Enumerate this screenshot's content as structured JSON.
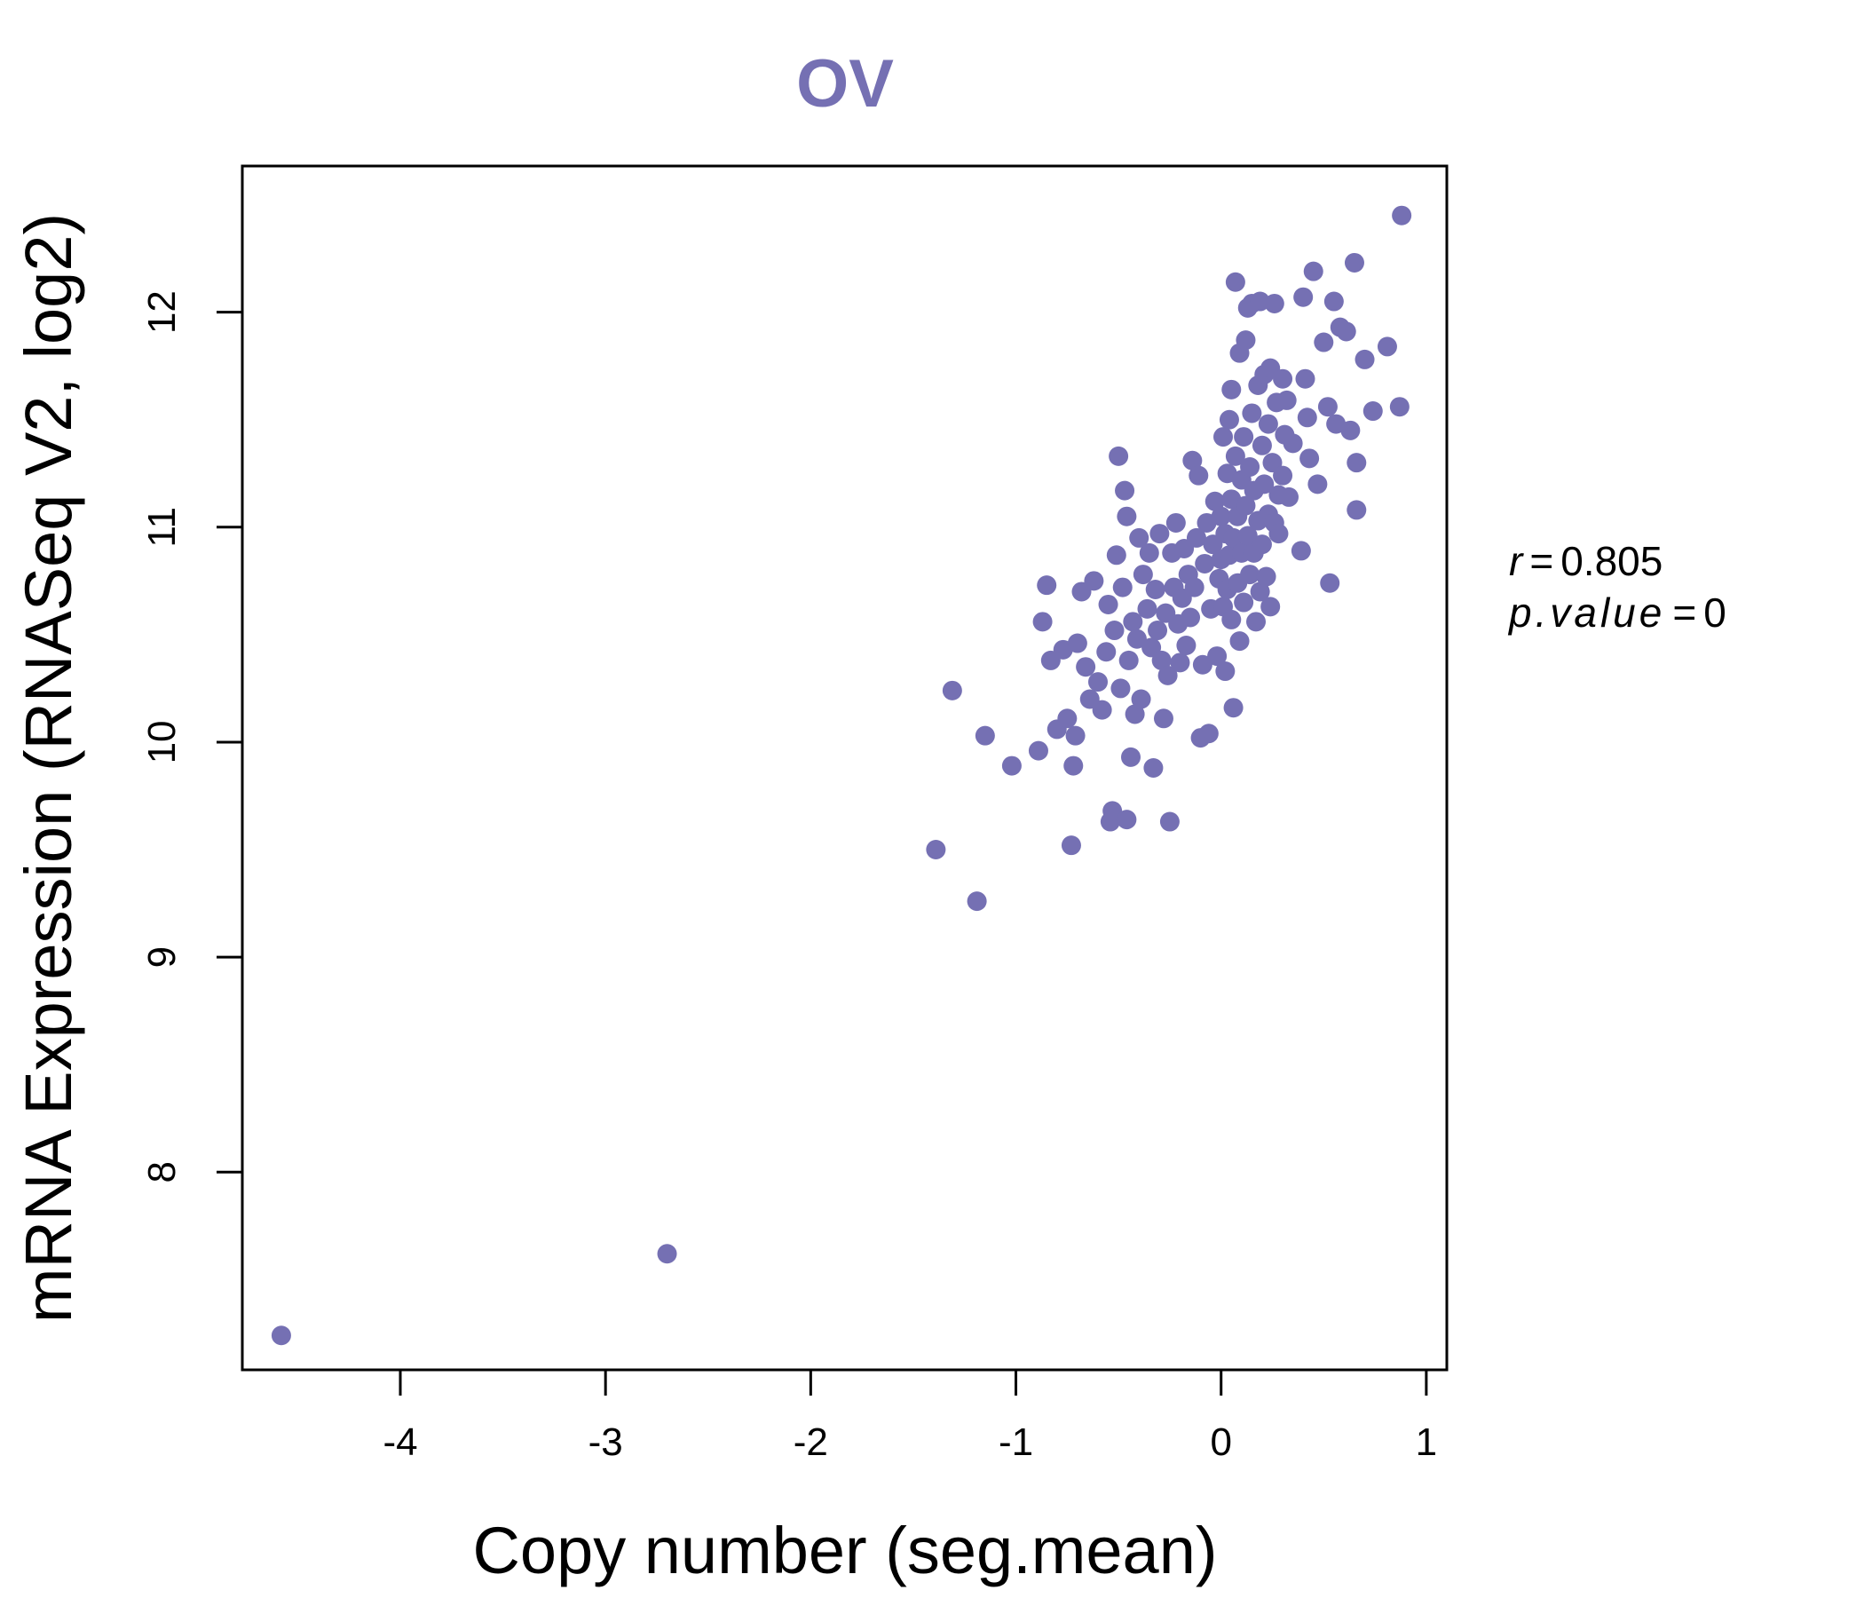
{
  "chart_data": {
    "type": "scatter",
    "title": "OV",
    "xlabel": "Copy number (seg.mean)",
    "ylabel": "mRNA Expression (RNASeq V2, log2)",
    "xlim": [
      -4.77,
      1.1
    ],
    "ylim": [
      7.08,
      12.68
    ],
    "xticks": [
      -4,
      -3,
      -2,
      -1,
      0,
      1
    ],
    "xtick_labels": [
      "-4",
      "-3",
      "-2",
      "-1",
      "0",
      "1"
    ],
    "yticks": [
      8,
      9,
      10,
      11,
      12
    ],
    "ytick_labels": [
      "8",
      "9",
      "10",
      "11",
      "12"
    ],
    "grid": false,
    "point_color": "#7570b3",
    "annotation": {
      "r_symbol": "r",
      "r_value": "0.805",
      "p_symbol": "p.value",
      "p_value": "0",
      "equals": "="
    },
    "points": [
      [
        -4.58,
        7.24
      ],
      [
        -2.7,
        7.62
      ],
      [
        -1.39,
        9.5
      ],
      [
        -1.19,
        9.26
      ],
      [
        -1.31,
        10.24
      ],
      [
        -1.15,
        10.03
      ],
      [
        -1.02,
        9.89
      ],
      [
        -0.89,
        9.96
      ],
      [
        -0.87,
        10.56
      ],
      [
        -0.85,
        10.73
      ],
      [
        -0.83,
        10.38
      ],
      [
        -0.8,
        10.06
      ],
      [
        -0.77,
        10.43
      ],
      [
        -0.75,
        10.11
      ],
      [
        -0.73,
        9.52
      ],
      [
        -0.72,
        9.89
      ],
      [
        -0.71,
        10.03
      ],
      [
        -0.7,
        10.46
      ],
      [
        -0.68,
        10.7
      ],
      [
        -0.66,
        10.35
      ],
      [
        -0.64,
        10.2
      ],
      [
        -0.62,
        10.75
      ],
      [
        -0.6,
        10.28
      ],
      [
        -0.58,
        10.15
      ],
      [
        -0.56,
        10.42
      ],
      [
        -0.55,
        10.64
      ],
      [
        -0.54,
        9.63
      ],
      [
        -0.53,
        9.68
      ],
      [
        -0.52,
        10.52
      ],
      [
        -0.51,
        10.87
      ],
      [
        -0.5,
        11.33
      ],
      [
        -0.49,
        10.25
      ],
      [
        -0.48,
        10.72
      ],
      [
        -0.47,
        11.17
      ],
      [
        -0.46,
        11.05
      ],
      [
        -0.46,
        9.64
      ],
      [
        -0.45,
        10.38
      ],
      [
        -0.44,
        9.93
      ],
      [
        -0.43,
        10.56
      ],
      [
        -0.42,
        10.13
      ],
      [
        -0.41,
        10.48
      ],
      [
        -0.4,
        10.95
      ],
      [
        -0.39,
        10.2
      ],
      [
        -0.38,
        10.78
      ],
      [
        -0.36,
        10.62
      ],
      [
        -0.35,
        10.88
      ],
      [
        -0.34,
        10.44
      ],
      [
        -0.33,
        9.88
      ],
      [
        -0.32,
        10.71
      ],
      [
        -0.31,
        10.52
      ],
      [
        -0.3,
        10.97
      ],
      [
        -0.29,
        10.38
      ],
      [
        -0.28,
        10.11
      ],
      [
        -0.27,
        10.6
      ],
      [
        -0.26,
        10.31
      ],
      [
        -0.25,
        9.63
      ],
      [
        -0.24,
        10.88
      ],
      [
        -0.23,
        10.72
      ],
      [
        -0.22,
        11.02
      ],
      [
        -0.21,
        10.55
      ],
      [
        -0.2,
        10.37
      ],
      [
        -0.19,
        10.67
      ],
      [
        -0.18,
        10.9
      ],
      [
        -0.17,
        10.45
      ],
      [
        -0.16,
        10.78
      ],
      [
        -0.15,
        10.58
      ],
      [
        -0.14,
        11.31
      ],
      [
        -0.13,
        10.72
      ],
      [
        -0.12,
        10.95
      ],
      [
        -0.11,
        11.24
      ],
      [
        -0.1,
        10.02
      ],
      [
        -0.09,
        10.36
      ],
      [
        -0.08,
        10.83
      ],
      [
        -0.07,
        11.02
      ],
      [
        -0.06,
        10.04
      ],
      [
        -0.05,
        10.62
      ],
      [
        -0.04,
        10.92
      ],
      [
        -0.03,
        11.12
      ],
      [
        -0.02,
        10.4
      ],
      [
        -0.01,
        10.76
      ],
      [
        0.0,
        10.85
      ],
      [
        0.0,
        11.05
      ],
      [
        0.01,
        10.63
      ],
      [
        0.01,
        11.42
      ],
      [
        0.02,
        10.97
      ],
      [
        0.02,
        10.33
      ],
      [
        0.03,
        11.25
      ],
      [
        0.03,
        10.71
      ],
      [
        0.04,
        11.5
      ],
      [
        0.04,
        10.87
      ],
      [
        0.05,
        11.64
      ],
      [
        0.05,
        10.57
      ],
      [
        0.05,
        11.13
      ],
      [
        0.06,
        10.16
      ],
      [
        0.06,
        10.95
      ],
      [
        0.07,
        12.14
      ],
      [
        0.07,
        11.33
      ],
      [
        0.08,
        10.74
      ],
      [
        0.08,
        11.05
      ],
      [
        0.09,
        11.81
      ],
      [
        0.09,
        10.47
      ],
      [
        0.1,
        11.22
      ],
      [
        0.1,
        10.88
      ],
      [
        0.11,
        11.42
      ],
      [
        0.11,
        10.65
      ],
      [
        0.12,
        11.1
      ],
      [
        0.12,
        11.87
      ],
      [
        0.13,
        10.96
      ],
      [
        0.13,
        12.02
      ],
      [
        0.14,
        11.28
      ],
      [
        0.14,
        10.78
      ],
      [
        0.15,
        12.04
      ],
      [
        0.15,
        11.53
      ],
      [
        0.16,
        10.88
      ],
      [
        0.16,
        11.17
      ],
      [
        0.17,
        10.56
      ],
      [
        0.18,
        11.66
      ],
      [
        0.18,
        11.03
      ],
      [
        0.19,
        12.05
      ],
      [
        0.19,
        10.7
      ],
      [
        0.2,
        11.38
      ],
      [
        0.2,
        10.92
      ],
      [
        0.21,
        11.71
      ],
      [
        0.21,
        11.2
      ],
      [
        0.22,
        10.77
      ],
      [
        0.23,
        11.48
      ],
      [
        0.23,
        11.06
      ],
      [
        0.24,
        11.74
      ],
      [
        0.24,
        10.63
      ],
      [
        0.25,
        11.3
      ],
      [
        0.26,
        12.04
      ],
      [
        0.26,
        11.02
      ],
      [
        0.27,
        11.58
      ],
      [
        0.28,
        11.15
      ],
      [
        0.28,
        10.97
      ],
      [
        0.3,
        11.69
      ],
      [
        0.3,
        11.24
      ],
      [
        0.31,
        11.43
      ],
      [
        0.32,
        11.59
      ],
      [
        0.33,
        11.14
      ],
      [
        0.35,
        11.39
      ],
      [
        0.39,
        10.89
      ],
      [
        0.4,
        12.07
      ],
      [
        0.41,
        11.69
      ],
      [
        0.42,
        11.51
      ],
      [
        0.43,
        11.32
      ],
      [
        0.45,
        12.19
      ],
      [
        0.47,
        11.2
      ],
      [
        0.5,
        11.86
      ],
      [
        0.52,
        11.56
      ],
      [
        0.53,
        10.74
      ],
      [
        0.55,
        12.05
      ],
      [
        0.56,
        11.48
      ],
      [
        0.58,
        11.93
      ],
      [
        0.61,
        11.91
      ],
      [
        0.63,
        11.45
      ],
      [
        0.65,
        12.23
      ],
      [
        0.66,
        11.3
      ],
      [
        0.66,
        11.08
      ],
      [
        0.7,
        11.78
      ],
      [
        0.74,
        11.54
      ],
      [
        0.81,
        11.84
      ],
      [
        0.87,
        11.56
      ],
      [
        0.88,
        12.45
      ]
    ]
  }
}
